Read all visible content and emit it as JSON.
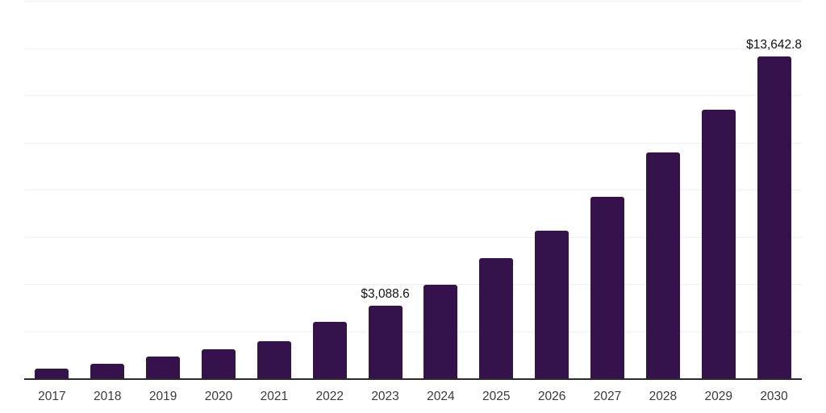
{
  "chart_data": {
    "type": "bar",
    "title": "",
    "xlabel": "",
    "ylabel": "",
    "categories": [
      "2017",
      "2018",
      "2019",
      "2020",
      "2021",
      "2022",
      "2023",
      "2024",
      "2025",
      "2026",
      "2027",
      "2028",
      "2029",
      "2030"
    ],
    "values": [
      400,
      620,
      910,
      1220,
      1560,
      2390,
      3088.6,
      3950,
      5110,
      6250,
      7700,
      9570,
      11390,
      13642.8
    ],
    "data_labels": [
      {
        "index": 6,
        "text": "$3,088.6"
      },
      {
        "index": 13,
        "text": "$13,642.8"
      }
    ],
    "ylim": [
      0,
      16000
    ],
    "gridline_step": 2000,
    "grid": true,
    "legend": "none",
    "y_axis_labels_visible": false,
    "colors": {
      "bar": "#35124B",
      "gridline": "#efefef",
      "axis_line": "#2b2b2b",
      "tick_label": "#3a3a3a",
      "data_label": "#111111",
      "background": "#ffffff"
    }
  }
}
